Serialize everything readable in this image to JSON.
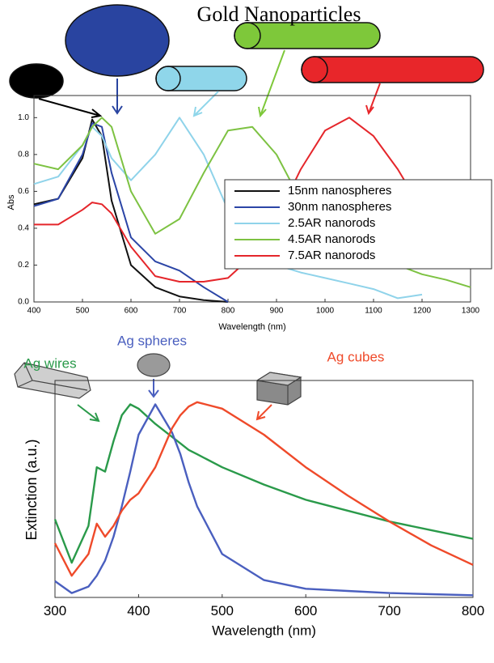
{
  "chart_data": [
    {
      "type": "line",
      "title": "Gold Nanoparticles",
      "x_label": "Wavelength (nm)",
      "y_label": "Abs",
      "x": [
        400,
        450,
        500,
        520,
        540,
        560,
        600,
        650,
        700,
        750,
        800,
        850,
        900,
        950,
        1000,
        1050,
        1100,
        1150,
        1200,
        1250,
        1300
      ],
      "series": [
        {
          "name": "15nm nanospheres",
          "color": "#111111",
          "values": [
            0.53,
            0.56,
            0.78,
            0.99,
            0.9,
            0.55,
            0.2,
            0.08,
            0.03,
            0.01,
            0.0,
            null,
            null,
            null,
            null,
            null,
            null,
            null,
            null,
            null,
            null
          ]
        },
        {
          "name": "30nm nanospheres",
          "color": "#2b45a6",
          "values": [
            0.52,
            0.56,
            0.8,
            0.97,
            0.95,
            0.7,
            0.35,
            0.22,
            0.17,
            0.08,
            0.0,
            null,
            null,
            null,
            null,
            null,
            null,
            null,
            null,
            null,
            null
          ]
        },
        {
          "name": "2.5AR nanorods",
          "color": "#8fd3ea",
          "values": [
            0.64,
            0.68,
            0.85,
            0.95,
            0.9,
            0.78,
            0.66,
            0.8,
            1.0,
            0.8,
            0.5,
            0.3,
            0.2,
            0.16,
            0.13,
            0.1,
            0.07,
            0.02,
            0.04,
            null,
            null
          ]
        },
        {
          "name": "4.5AR nanorods",
          "color": "#7dc242",
          "values": [
            0.75,
            0.72,
            0.85,
            0.95,
            1.0,
            0.95,
            0.6,
            0.37,
            0.45,
            0.7,
            0.93,
            0.95,
            0.8,
            0.55,
            0.38,
            0.3,
            0.25,
            0.2,
            0.15,
            0.12,
            0.08
          ]
        },
        {
          "name": "7.5AR nanorods",
          "color": "#e5262b",
          "values": [
            0.42,
            0.42,
            0.5,
            0.54,
            0.53,
            0.48,
            0.3,
            0.14,
            0.11,
            0.11,
            0.13,
            0.25,
            0.45,
            0.72,
            0.93,
            1.0,
            0.9,
            0.72,
            0.5,
            0.3,
            null
          ]
        }
      ],
      "xlim": [
        400,
        1300
      ],
      "xticks": [
        400,
        500,
        600,
        700,
        800,
        900,
        1000,
        1100,
        1200,
        1300
      ],
      "ylim": [
        0,
        1.12
      ],
      "yticks": [
        {
          "value": 0,
          "label": "0.0"
        },
        0.2,
        0.4,
        0.6,
        0.8,
        {
          "value": 1,
          "label": "1.0"
        }
      ],
      "legend": "right"
    },
    {
      "type": "line",
      "x_label": "Wavelength (nm)",
      "y_label": "Extinction (a.u.)",
      "x": [
        300,
        320,
        340,
        350,
        360,
        370,
        380,
        390,
        400,
        420,
        440,
        450,
        460,
        470,
        500,
        550,
        600,
        650,
        700,
        750,
        800
      ],
      "series": [
        {
          "name": "Ag wires",
          "color": "#2a9a4a",
          "values": [
            0.36,
            0.16,
            0.33,
            0.6,
            0.58,
            0.72,
            0.84,
            0.89,
            0.87,
            0.8,
            0.74,
            0.71,
            0.68,
            0.66,
            0.6,
            0.52,
            0.45,
            0.4,
            0.35,
            0.31,
            0.27
          ]
        },
        {
          "name": "Ag spheres",
          "color": "#4a5fbf",
          "values": [
            0.075,
            0.02,
            0.05,
            0.1,
            0.17,
            0.28,
            0.42,
            0.58,
            0.75,
            0.89,
            0.76,
            0.66,
            0.53,
            0.42,
            0.2,
            0.08,
            0.04,
            0.03,
            0.02,
            0.015,
            0.01
          ]
        },
        {
          "name": "Ag cubes",
          "color": "#ef4a2a",
          "values": [
            0.25,
            0.1,
            0.2,
            0.34,
            0.28,
            0.33,
            0.4,
            0.45,
            0.48,
            0.6,
            0.78,
            0.84,
            0.88,
            0.9,
            0.87,
            0.75,
            0.6,
            0.47,
            0.35,
            0.24,
            0.15
          ]
        }
      ],
      "xlim": [
        300,
        800
      ],
      "xticks": [
        300,
        400,
        500,
        600,
        700,
        800
      ],
      "ylim": [
        0,
        1
      ],
      "legend": "none"
    }
  ]
}
